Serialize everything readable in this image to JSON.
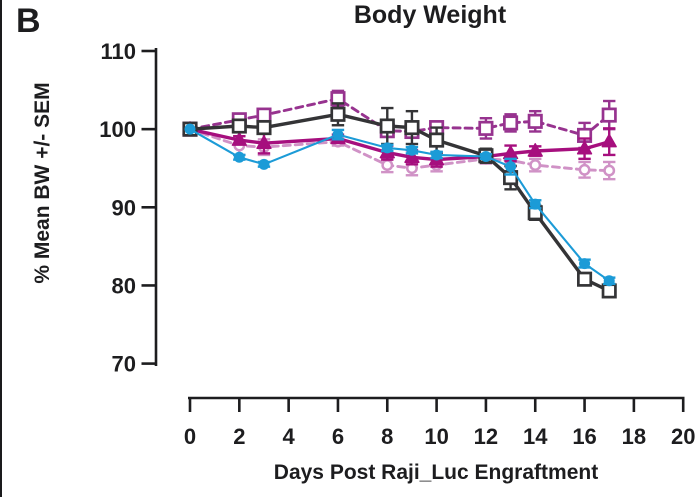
{
  "chart_data": {
    "type": "line",
    "panel_label": "B",
    "title": "Body Weight",
    "xlabel": "Days Post Raji_Luc Engraftment",
    "ylabel": "% Mean BW +/- SEM",
    "xlim": [
      0,
      20
    ],
    "ylim": [
      70,
      110
    ],
    "xticks": [
      0,
      2,
      4,
      6,
      8,
      10,
      12,
      14,
      16,
      18,
      20
    ],
    "yticks": [
      70,
      80,
      90,
      100,
      110
    ],
    "grid": false,
    "legend_position": "none",
    "x": [
      0,
      2,
      3,
      6,
      8,
      9,
      10,
      12,
      13,
      14,
      16,
      17
    ],
    "series": [
      {
        "name": "pink-dashed-open-circle",
        "marker": "open-circle",
        "line_style": "dashed",
        "color": "#d092c6",
        "values": [
          100,
          97.9,
          97.7,
          98.4,
          95.4,
          95.0,
          95.4,
          96.2,
          96.0,
          95.4,
          94.8,
          94.7
        ],
        "sem": [
          0,
          1.2,
          1.0,
          0.5,
          0.9,
          0.9,
          0.8,
          0.6,
          0.8,
          0.8,
          1.0,
          1.1
        ]
      },
      {
        "name": "purple-dashed-open-square",
        "marker": "open-square",
        "line_style": "dashed",
        "color": "#97338f",
        "values": [
          100,
          101.2,
          101.8,
          103.9,
          99.8,
          99.7,
          100.2,
          100.1,
          100.8,
          101.0,
          99.2,
          101.8
        ],
        "sem": [
          0,
          0.5,
          0.6,
          1.0,
          0.6,
          0.8,
          0.7,
          1.3,
          1.1,
          1.3,
          1.6,
          1.8
        ]
      },
      {
        "name": "magenta-solid-filled-triangle",
        "marker": "filled-triangle",
        "line_style": "solid",
        "color": "#a60f7e",
        "values": [
          100,
          98.6,
          98.2,
          98.8,
          97.0,
          96.4,
          96.1,
          96.5,
          96.9,
          97.2,
          97.5,
          98.4
        ],
        "sem": [
          0,
          0.5,
          1.3,
          0.5,
          0.9,
          0.9,
          0.9,
          0.7,
          1.0,
          0.6,
          1.3,
          1.7
        ]
      },
      {
        "name": "black-solid-open-square",
        "marker": "open-square",
        "line_style": "solid",
        "color": "#343436",
        "values": [
          100,
          100.4,
          100.2,
          101.9,
          100.4,
          100.2,
          98.6,
          96.6,
          93.8,
          89.3,
          80.8,
          79.3
        ],
        "sem": [
          0,
          0.4,
          0.4,
          1.4,
          2.3,
          2.1,
          1.6,
          0.9,
          1.5,
          0.9,
          0.7,
          0.7
        ]
      },
      {
        "name": "blue-solid-filled-circle",
        "marker": "filled-circle",
        "line_style": "solid",
        "color": "#1c9bd7",
        "values": [
          100,
          96.4,
          95.5,
          99.3,
          97.6,
          97.3,
          96.7,
          96.5,
          95.2,
          90.4,
          82.8,
          80.6
        ],
        "sem": [
          0,
          0.3,
          0.3,
          0.6,
          0.4,
          0.4,
          0.4,
          0.3,
          1.0,
          0.5,
          0.5,
          0.4
        ]
      }
    ]
  }
}
